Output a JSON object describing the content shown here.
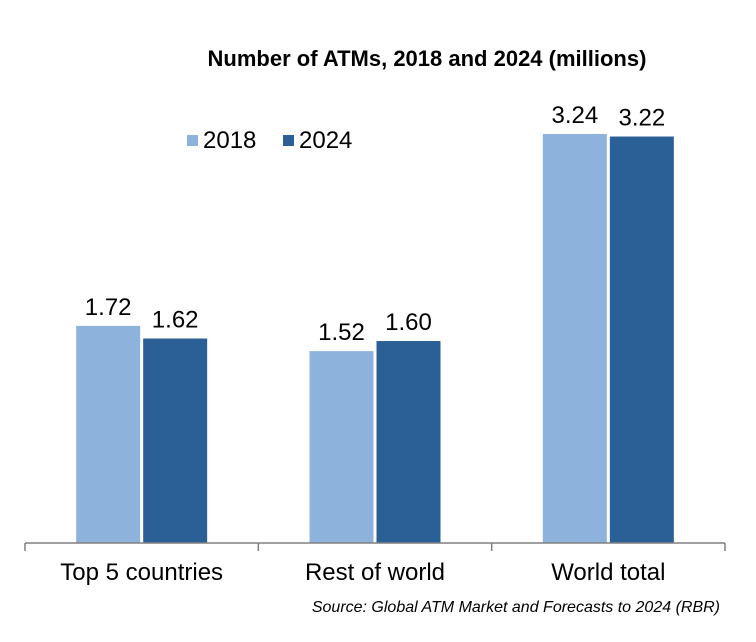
{
  "chart_data": {
    "type": "bar",
    "title": "Number of ATMs, 2018 and 2024 (millions)",
    "categories": [
      "Top 5 countries",
      "Rest of world",
      "World total"
    ],
    "series": [
      {
        "name": "2018",
        "values": [
          1.72,
          1.52,
          3.24
        ],
        "labels": [
          "1.72",
          "1.52",
          "3.24"
        ],
        "color": "#8db3dc"
      },
      {
        "name": "2024",
        "values": [
          1.62,
          1.6,
          3.22
        ],
        "labels": [
          "1.62",
          "1.60",
          "3.22"
        ],
        "color": "#2b6096"
      }
    ],
    "ylim": [
      0,
      3.24
    ],
    "grid": false,
    "legend_position": "top-left",
    "source": "Source: Global ATM Market and Forecasts to 2024 (RBR)"
  }
}
